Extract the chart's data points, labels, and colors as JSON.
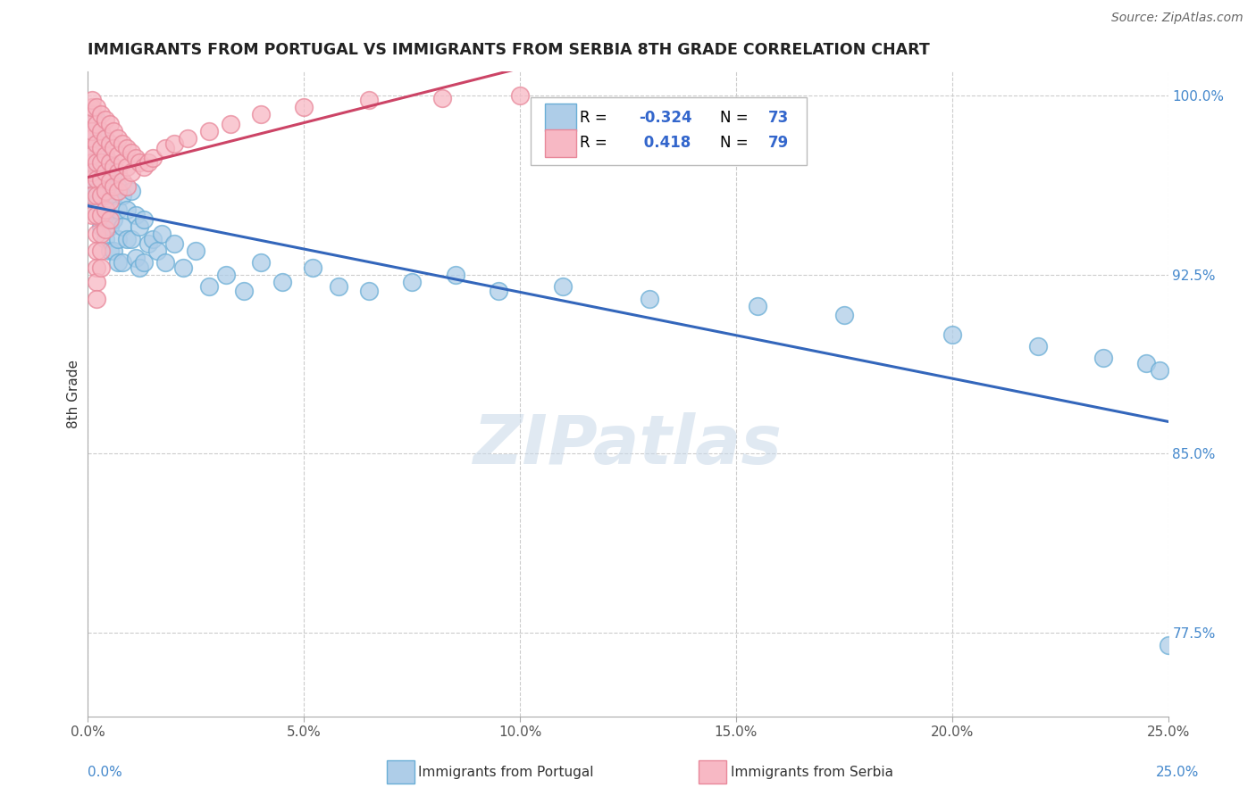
{
  "title": "IMMIGRANTS FROM PORTUGAL VS IMMIGRANTS FROM SERBIA 8TH GRADE CORRELATION CHART",
  "source": "Source: ZipAtlas.com",
  "ylabel": "8th Grade",
  "xlim": [
    0.0,
    0.25
  ],
  "ylim": [
    0.74,
    1.01
  ],
  "xtick_vals": [
    0.0,
    0.05,
    0.1,
    0.15,
    0.2,
    0.25
  ],
  "xtick_labels": [
    "0.0%",
    "5.0%",
    "10.0%",
    "15.0%",
    "20.0%",
    "25.0%"
  ],
  "ytick_vals": [
    0.775,
    0.85,
    0.925,
    1.0
  ],
  "ytick_labels": [
    "77.5%",
    "85.0%",
    "92.5%",
    "100.0%"
  ],
  "blue_face": "#aecde8",
  "blue_edge": "#6aaed6",
  "pink_face": "#f7b8c4",
  "pink_edge": "#e8889a",
  "trend_blue": "#3366bb",
  "trend_pink": "#cc4466",
  "watermark": "ZIPatlas",
  "R_portugal": "-0.324",
  "N_portugal": "73",
  "R_serbia": "0.418",
  "N_serbia": "79",
  "portugal_x": [
    0.001,
    0.001,
    0.001,
    0.002,
    0.002,
    0.002,
    0.002,
    0.002,
    0.003,
    0.003,
    0.003,
    0.003,
    0.003,
    0.003,
    0.004,
    0.004,
    0.004,
    0.004,
    0.004,
    0.005,
    0.005,
    0.005,
    0.005,
    0.006,
    0.006,
    0.006,
    0.006,
    0.007,
    0.007,
    0.007,
    0.007,
    0.008,
    0.008,
    0.008,
    0.009,
    0.009,
    0.01,
    0.01,
    0.011,
    0.011,
    0.012,
    0.012,
    0.013,
    0.013,
    0.014,
    0.015,
    0.016,
    0.017,
    0.018,
    0.02,
    0.022,
    0.025,
    0.028,
    0.032,
    0.036,
    0.04,
    0.045,
    0.052,
    0.058,
    0.065,
    0.075,
    0.085,
    0.095,
    0.11,
    0.13,
    0.155,
    0.175,
    0.2,
    0.22,
    0.235,
    0.245,
    0.248,
    0.25
  ],
  "portugal_y": [
    0.975,
    0.985,
    0.965,
    0.97,
    0.98,
    0.96,
    0.99,
    0.955,
    0.975,
    0.965,
    0.958,
    0.97,
    0.982,
    0.945,
    0.968,
    0.975,
    0.958,
    0.95,
    0.94,
    0.965,
    0.972,
    0.945,
    0.935,
    0.968,
    0.958,
    0.948,
    0.935,
    0.962,
    0.952,
    0.94,
    0.93,
    0.958,
    0.945,
    0.93,
    0.952,
    0.94,
    0.96,
    0.94,
    0.95,
    0.932,
    0.945,
    0.928,
    0.948,
    0.93,
    0.938,
    0.94,
    0.935,
    0.942,
    0.93,
    0.938,
    0.928,
    0.935,
    0.92,
    0.925,
    0.918,
    0.93,
    0.922,
    0.928,
    0.92,
    0.918,
    0.922,
    0.925,
    0.918,
    0.92,
    0.915,
    0.912,
    0.908,
    0.9,
    0.895,
    0.89,
    0.888,
    0.885,
    0.77
  ],
  "serbia_x": [
    0.001,
    0.001,
    0.001,
    0.001,
    0.001,
    0.001,
    0.001,
    0.001,
    0.001,
    0.001,
    0.001,
    0.001,
    0.001,
    0.002,
    0.002,
    0.002,
    0.002,
    0.002,
    0.002,
    0.002,
    0.002,
    0.002,
    0.002,
    0.002,
    0.002,
    0.003,
    0.003,
    0.003,
    0.003,
    0.003,
    0.003,
    0.003,
    0.003,
    0.003,
    0.003,
    0.004,
    0.004,
    0.004,
    0.004,
    0.004,
    0.004,
    0.004,
    0.005,
    0.005,
    0.005,
    0.005,
    0.005,
    0.005,
    0.006,
    0.006,
    0.006,
    0.006,
    0.007,
    0.007,
    0.007,
    0.007,
    0.008,
    0.008,
    0.008,
    0.009,
    0.009,
    0.009,
    0.01,
    0.01,
    0.011,
    0.012,
    0.013,
    0.014,
    0.015,
    0.018,
    0.02,
    0.023,
    0.028,
    0.033,
    0.04,
    0.05,
    0.065,
    0.082,
    0.1
  ],
  "serbia_y": [
    0.988,
    0.992,
    0.978,
    0.995,
    0.982,
    0.972,
    0.998,
    0.985,
    0.965,
    0.975,
    0.968,
    0.958,
    0.95,
    0.995,
    0.988,
    0.98,
    0.972,
    0.965,
    0.958,
    0.95,
    0.942,
    0.935,
    0.928,
    0.922,
    0.915,
    0.992,
    0.985,
    0.978,
    0.972,
    0.965,
    0.958,
    0.95,
    0.942,
    0.935,
    0.928,
    0.99,
    0.982,
    0.975,
    0.968,
    0.96,
    0.952,
    0.944,
    0.988,
    0.98,
    0.972,
    0.964,
    0.956,
    0.948,
    0.985,
    0.978,
    0.97,
    0.962,
    0.982,
    0.975,
    0.968,
    0.96,
    0.98,
    0.972,
    0.964,
    0.978,
    0.97,
    0.962,
    0.976,
    0.968,
    0.974,
    0.972,
    0.97,
    0.972,
    0.974,
    0.978,
    0.98,
    0.982,
    0.985,
    0.988,
    0.992,
    0.995,
    0.998,
    0.999,
    1.0
  ]
}
